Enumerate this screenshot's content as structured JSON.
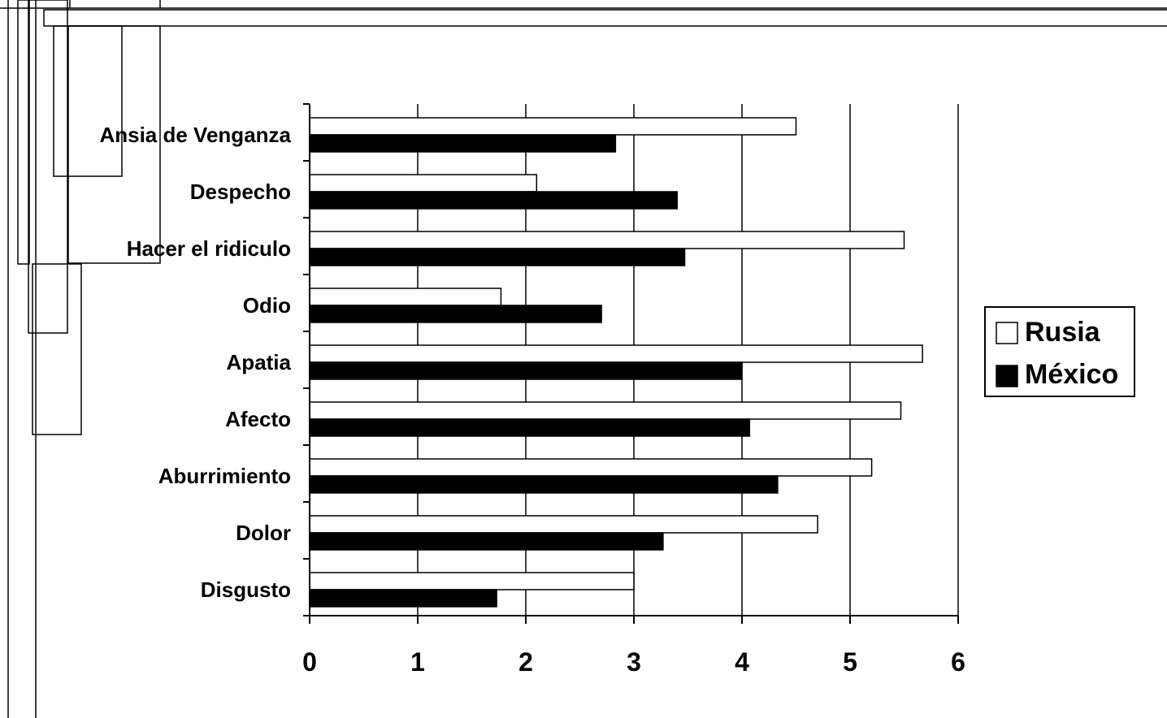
{
  "chart_data": {
    "type": "bar",
    "orientation": "horizontal",
    "title": "",
    "xlabel": "",
    "ylabel": "",
    "categories": [
      "Ansia de Venganza",
      "Despecho",
      "Hacer el ridiculo",
      "Odio",
      "Apatia",
      "Afecto",
      "Aburrimiento",
      "Dolor",
      "Disgusto"
    ],
    "series": [
      {
        "name": "Rusia",
        "color": "#ffffff",
        "values": [
          4.5,
          2.1,
          5.5,
          1.77,
          5.67,
          5.47,
          5.2,
          4.7,
          3.0
        ]
      },
      {
        "name": "México",
        "color": "#000000",
        "values": [
          2.83,
          3.4,
          3.47,
          2.7,
          4.0,
          4.07,
          4.33,
          3.27,
          1.73
        ]
      }
    ],
    "xlim": [
      0,
      6
    ],
    "xticks": [
      "0",
      "1",
      "2",
      "3",
      "4",
      "5",
      "6"
    ],
    "grid": "vertical",
    "legend": "right"
  }
}
